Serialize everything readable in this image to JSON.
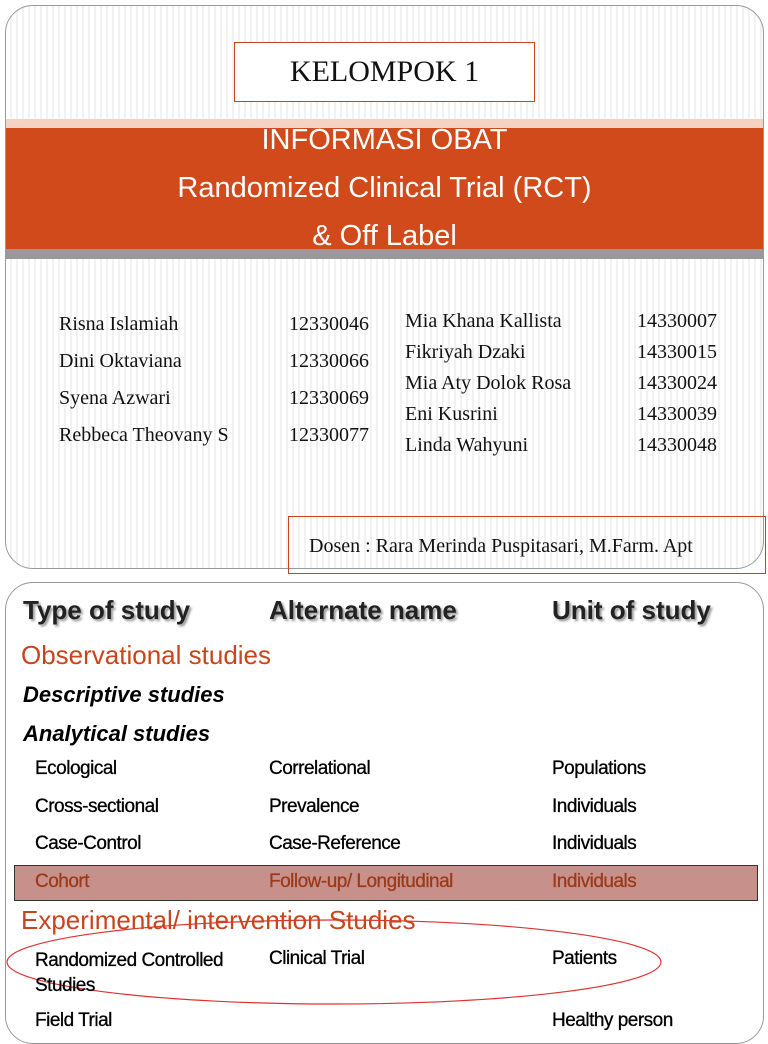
{
  "slide1": {
    "title": "KELOMPOK 1",
    "banner": [
      "INFORMASI OBAT",
      "Randomized Clinical Trial (RCT)",
      "& Off Label"
    ],
    "members_left": [
      [
        "Risna Islamiah",
        "12330046"
      ],
      [
        "Dini Oktaviana",
        "12330066"
      ],
      [
        "Syena Azwari",
        "12330069"
      ],
      [
        "Rebbeca Theovany S",
        "12330077"
      ]
    ],
    "members_right": [
      [
        "Mia Khana Kallista",
        "14330007"
      ],
      [
        "Fikriyah Dzaki",
        "14330015"
      ],
      [
        "Mia Aty Dolok Rosa",
        "14330024"
      ],
      [
        "Eni Kusrini",
        "14330039"
      ],
      [
        "Linda Wahyuni",
        "14330048"
      ]
    ],
    "lecturer": "Dosen : Rara Merinda Puspitasari, M.Farm. Apt"
  },
  "slide2": {
    "header": [
      "Type of study",
      "Alternate name",
      "Unit of study"
    ],
    "observational": "Observational studies",
    "descriptive": "Descriptive studies",
    "analytical": "Analytical studies",
    "analytical_rows": [
      [
        "Ecological",
        "Correlational",
        "Populations"
      ],
      [
        "Cross-sectional",
        "Prevalence",
        "Individuals"
      ],
      [
        "Case-Control",
        "Case-Reference",
        "Individuals"
      ],
      [
        "Cohort",
        "Follow-up/ Longitudinal",
        "Individuals"
      ]
    ],
    "experimental": "Experimental/ intervention Studies",
    "experimental_rows": [
      {
        "type": "Randomized Controlled Studies",
        "alternate": "Clinical Trial",
        "unit": "Patients"
      },
      {
        "type": "Field Trial",
        "unit": "Healthy person"
      }
    ]
  }
}
